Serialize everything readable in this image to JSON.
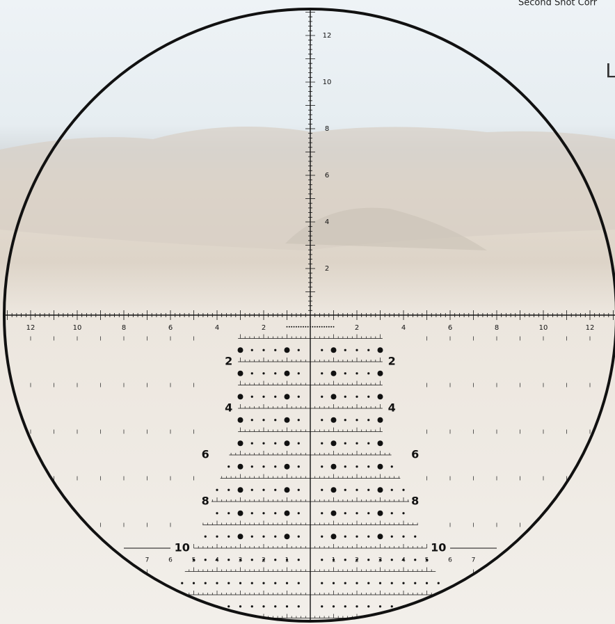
{
  "header_text": "Second Shot Corr",
  "side_text": "L",
  "vertical_scale": [
    "2",
    "4",
    "6",
    "8",
    "10",
    "12"
  ],
  "horizontal_scale_left": [
    "12",
    "10",
    "8",
    "6",
    "4",
    "2"
  ],
  "horizontal_scale_right": [
    "2",
    "4",
    "6",
    "8",
    "10",
    "12"
  ],
  "tree_labels_left": [
    "2",
    "4",
    "6",
    "8",
    "10"
  ],
  "tree_labels_right": [
    "2",
    "4",
    "6",
    "8",
    "10"
  ],
  "wind_labels_left": [
    "7",
    "6",
    "5",
    "4",
    "3",
    "2",
    "1"
  ],
  "wind_labels_right": [
    "1",
    "2",
    "3",
    "4",
    "5",
    "6",
    "7"
  ]
}
